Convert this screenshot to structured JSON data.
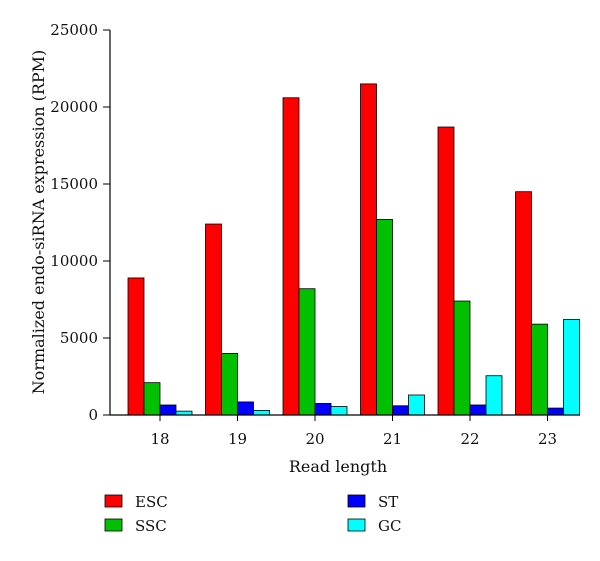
{
  "chart_data": {
    "type": "bar",
    "categories": [
      "18",
      "19",
      "20",
      "21",
      "22",
      "23"
    ],
    "series": [
      {
        "name": "ESC",
        "color": "#ff0000",
        "values": [
          8900,
          12400,
          20600,
          21500,
          18700,
          14500
        ]
      },
      {
        "name": "SSC",
        "color": "#00c000",
        "values": [
          2100,
          4000,
          8200,
          12700,
          7400,
          5900
        ]
      },
      {
        "name": "ST",
        "color": "#0000ff",
        "values": [
          650,
          850,
          750,
          600,
          650,
          450
        ]
      },
      {
        "name": "GC",
        "color": "#00ffff",
        "values": [
          250,
          300,
          550,
          1300,
          2550,
          6200
        ]
      }
    ],
    "xlabel": "Read length",
    "ylabel": "Normalized endo-siRNA expression (RPM)",
    "ylim": [
      0,
      25000
    ],
    "yticks": [
      "0",
      "5000",
      "10000",
      "15000",
      "20000",
      "25000"
    ],
    "legend_position": "bottom",
    "grid": false
  }
}
